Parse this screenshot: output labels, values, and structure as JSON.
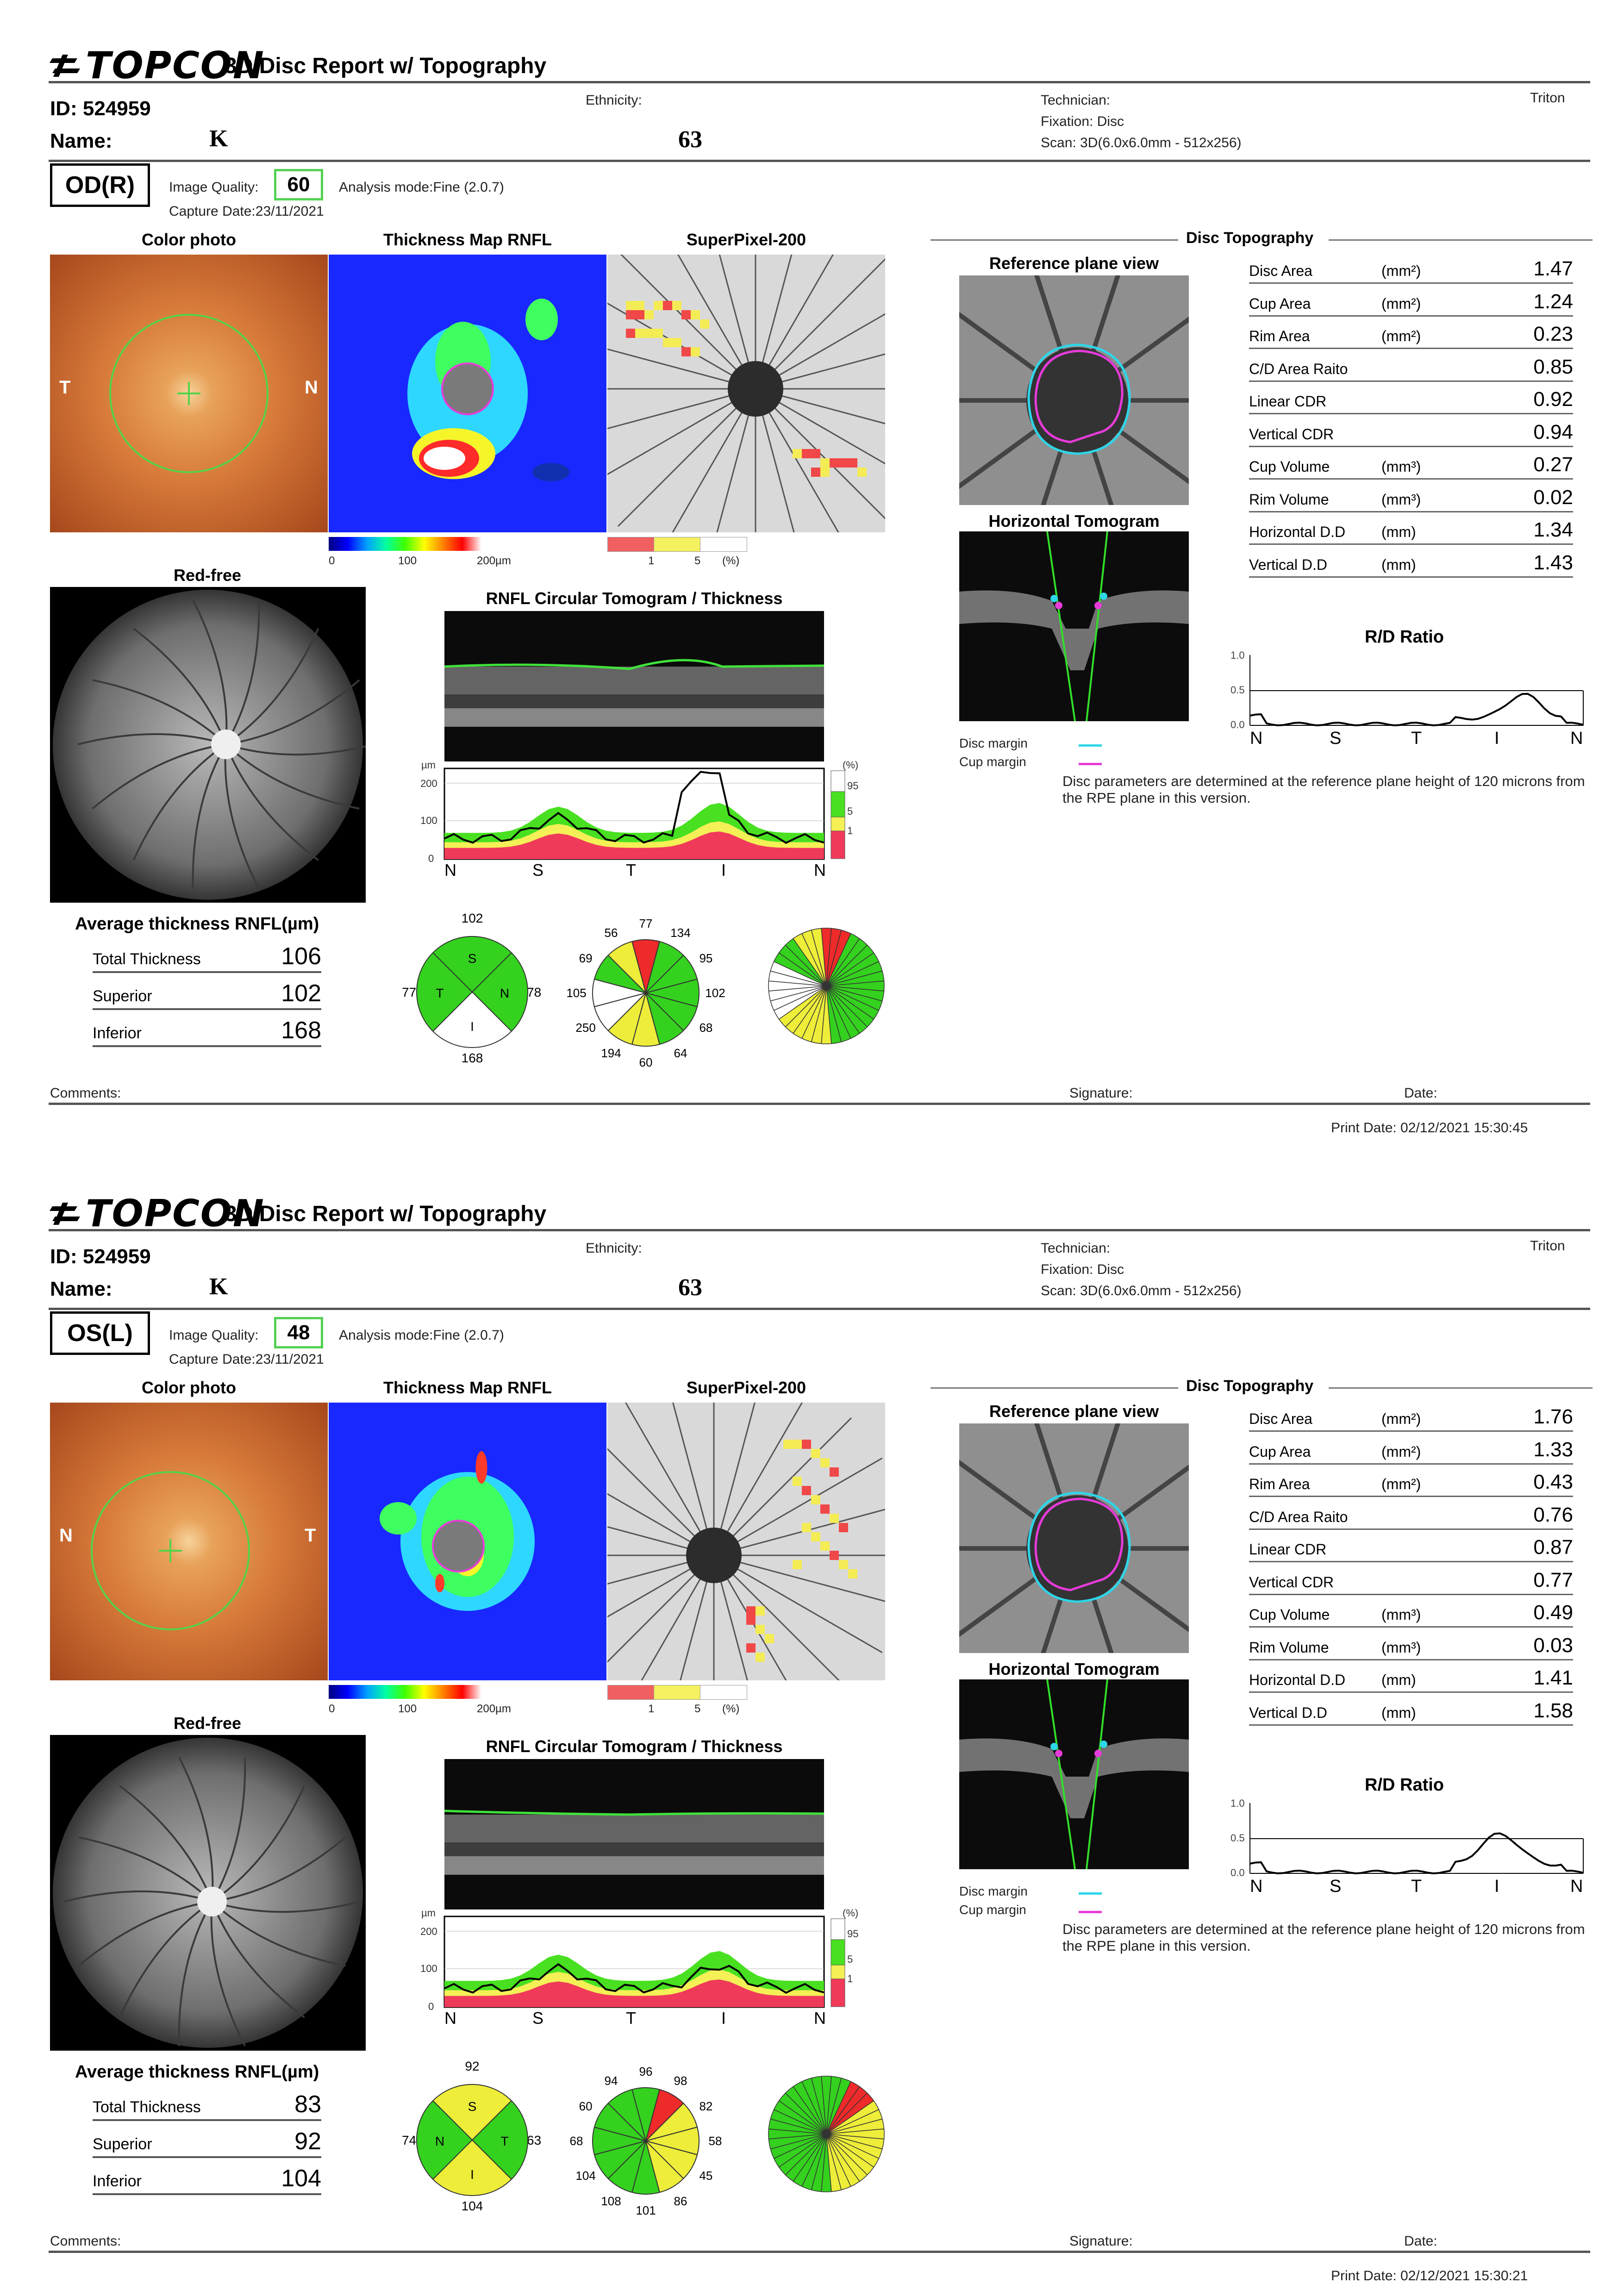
{
  "reports": [
    {
      "brand": "TOPCON",
      "title": "3D Disc Report w/ Topography",
      "id_label": "ID: 524959",
      "name_label": "Name:",
      "name_value": "K",
      "ethnicity_label": "Ethnicity:",
      "age_value": "63",
      "technician": "Technician:",
      "fixation": "Fixation: Disc",
      "scan": "Scan: 3D(6.0x6.0mm - 512x256)",
      "device": "Triton",
      "eye": "OD(R)",
      "image_quality_label": "Image Quality:",
      "image_quality": "60",
      "analysis_mode": "Analysis mode:Fine (2.0.7)",
      "capture_date": "Capture Date:23/11/2021",
      "panels": {
        "color_photo": "Color photo",
        "thickness_map": "Thickness Map RNFL",
        "superpixel": "SuperPixel-200",
        "red_free": "Red-free",
        "circular": "RNFL Circular Tomogram / Thickness",
        "disc_topography": "Disc Topography",
        "reference_plane": "Reference plane view",
        "horizontal_tomogram": "Horizontal Tomogram",
        "rd_ratio": "R/D Ratio"
      },
      "photo_left": "T",
      "photo_right": "N",
      "scale_thickness": [
        "0",
        "100",
        "200µm"
      ],
      "scale_superpixel": [
        "1",
        "5",
        "(%)"
      ],
      "topography": [
        {
          "name": "Disc Area",
          "unit": "(mm²)",
          "value": "1.47"
        },
        {
          "name": "Cup Area",
          "unit": "(mm²)",
          "value": "1.24"
        },
        {
          "name": "Rim Area",
          "unit": "(mm²)",
          "value": "0.23"
        },
        {
          "name": "C/D Area Raito",
          "unit": "",
          "value": "0.85"
        },
        {
          "name": "Linear CDR",
          "unit": "",
          "value": "0.92"
        },
        {
          "name": "Vertical CDR",
          "unit": "",
          "value": "0.94"
        },
        {
          "name": "Cup Volume",
          "unit": "(mm³)",
          "value": "0.27"
        },
        {
          "name": "Rim Volume",
          "unit": "(mm³)",
          "value": "0.02"
        },
        {
          "name": "Horizontal D.D",
          "unit": "(mm)",
          "value": "1.34"
        },
        {
          "name": "Vertical D.D",
          "unit": "(mm)",
          "value": "1.43"
        }
      ],
      "rd_axis": [
        "1.0",
        "0.5",
        "0.0"
      ],
      "rd_ticks": [
        "N",
        "S",
        "T",
        "I",
        "N"
      ],
      "disc_margin": "Disc margin",
      "cup_margin": "Cup margin",
      "disc_note": "Disc parameters are determined at the reference plane height of 120 microns from the RPE plane in this version.",
      "tsnit_axis": [
        "µm",
        "200",
        "100",
        "0"
      ],
      "tsnit_pct": [
        "(%)",
        "95",
        "5",
        "1"
      ],
      "tsnit_ticks": [
        "N",
        "S",
        "T",
        "I",
        "N"
      ],
      "average_title": "Average thickness RNFL(µm)",
      "average": [
        {
          "name": "Total Thickness",
          "value": "106"
        },
        {
          "name": "Superior",
          "value": "102"
        },
        {
          "name": "Inferior",
          "value": "168"
        }
      ],
      "quadrants": {
        "S": "102",
        "N": "78",
        "I": "168",
        "T": "77"
      },
      "quad_letters": [
        "S",
        "N",
        "I",
        "T"
      ],
      "clock_values": [
        "77",
        "134",
        "95",
        "102",
        "68",
        "64",
        "60",
        "194",
        "250",
        "105",
        "69",
        "56"
      ],
      "comments": "Comments:",
      "signature": "Signature:",
      "date": "Date:",
      "print_date": "Print Date: 02/12/2021 15:30:45",
      "colors": {
        "quad_S": "#34d11e",
        "quad_N": "#34d11e",
        "quad_I": "#ffffff",
        "quad_T": "#34d11e"
      },
      "clock_colors": [
        "#ee2a2a",
        "#34d11e",
        "#34d11e",
        "#34d11e",
        "#34d11e",
        "#34d11e",
        "#eded3a",
        "#eded3a",
        "#ffffff",
        "#ffffff",
        "#34d11e",
        "#eded3a"
      ]
    },
    {
      "brand": "TOPCON",
      "title": "3D Disc Report w/ Topography",
      "id_label": "ID: 524959",
      "name_label": "Name:",
      "name_value": "K",
      "ethnicity_label": "Ethnicity:",
      "age_value": "63",
      "technician": "Technician:",
      "fixation": "Fixation: Disc",
      "scan": "Scan: 3D(6.0x6.0mm - 512x256)",
      "device": "Triton",
      "eye": "OS(L)",
      "image_quality_label": "Image Quality:",
      "image_quality": "48",
      "analysis_mode": "Analysis mode:Fine (2.0.7)",
      "capture_date": "Capture Date:23/11/2021",
      "panels": {
        "color_photo": "Color photo",
        "thickness_map": "Thickness Map RNFL",
        "superpixel": "SuperPixel-200",
        "red_free": "Red-free",
        "circular": "RNFL Circular Tomogram / Thickness",
        "disc_topography": "Disc Topography",
        "reference_plane": "Reference plane view",
        "horizontal_tomogram": "Horizontal Tomogram",
        "rd_ratio": "R/D Ratio"
      },
      "photo_left": "N",
      "photo_right": "T",
      "scale_thickness": [
        "0",
        "100",
        "200µm"
      ],
      "scale_superpixel": [
        "1",
        "5",
        "(%)"
      ],
      "topography": [
        {
          "name": "Disc Area",
          "unit": "(mm²)",
          "value": "1.76"
        },
        {
          "name": "Cup Area",
          "unit": "(mm²)",
          "value": "1.33"
        },
        {
          "name": "Rim Area",
          "unit": "(mm²)",
          "value": "0.43"
        },
        {
          "name": "C/D Area Raito",
          "unit": "",
          "value": "0.76"
        },
        {
          "name": "Linear CDR",
          "unit": "",
          "value": "0.87"
        },
        {
          "name": "Vertical CDR",
          "unit": "",
          "value": "0.77"
        },
        {
          "name": "Cup Volume",
          "unit": "(mm³)",
          "value": "0.49"
        },
        {
          "name": "Rim Volume",
          "unit": "(mm³)",
          "value": "0.03"
        },
        {
          "name": "Horizontal D.D",
          "unit": "(mm)",
          "value": "1.41"
        },
        {
          "name": "Vertical D.D",
          "unit": "(mm)",
          "value": "1.58"
        }
      ],
      "rd_axis": [
        "1.0",
        "0.5",
        "0.0"
      ],
      "rd_ticks": [
        "N",
        "S",
        "T",
        "I",
        "N"
      ],
      "disc_margin": "Disc margin",
      "cup_margin": "Cup margin",
      "disc_note": "Disc parameters are determined at the reference plane height of 120 microns from the RPE plane in this version.",
      "tsnit_axis": [
        "µm",
        "200",
        "100",
        "0"
      ],
      "tsnit_pct": [
        "(%)",
        "95",
        "5",
        "1"
      ],
      "tsnit_ticks": [
        "N",
        "S",
        "T",
        "I",
        "N"
      ],
      "average_title": "Average thickness RNFL(µm)",
      "average": [
        {
          "name": "Total Thickness",
          "value": "83"
        },
        {
          "name": "Superior",
          "value": "92"
        },
        {
          "name": "Inferior",
          "value": "104"
        }
      ],
      "quadrants": {
        "S": "92",
        "N": "74",
        "I": "104",
        "T": "63"
      },
      "quad_letters": [
        "S",
        "T",
        "I",
        "N"
      ],
      "clock_values": [
        "96",
        "98",
        "82",
        "58",
        "45",
        "86",
        "101",
        "108",
        "104",
        "68",
        "60",
        "94"
      ],
      "comments": "Comments:",
      "signature": "Signature:",
      "date": "Date:",
      "print_date": "Print Date: 02/12/2021 15:30:21",
      "colors": {
        "quad_S": "#eded3a",
        "quad_N": "#34d11e",
        "quad_I": "#eded3a",
        "quad_T": "#34d11e"
      },
      "clock_colors": [
        "#34d11e",
        "#ee2a2a",
        "#eded3a",
        "#eded3a",
        "#eded3a",
        "#eded3a",
        "#34d11e",
        "#34d11e",
        "#34d11e",
        "#34d11e",
        "#34d11e",
        "#34d11e"
      ]
    }
  ]
}
